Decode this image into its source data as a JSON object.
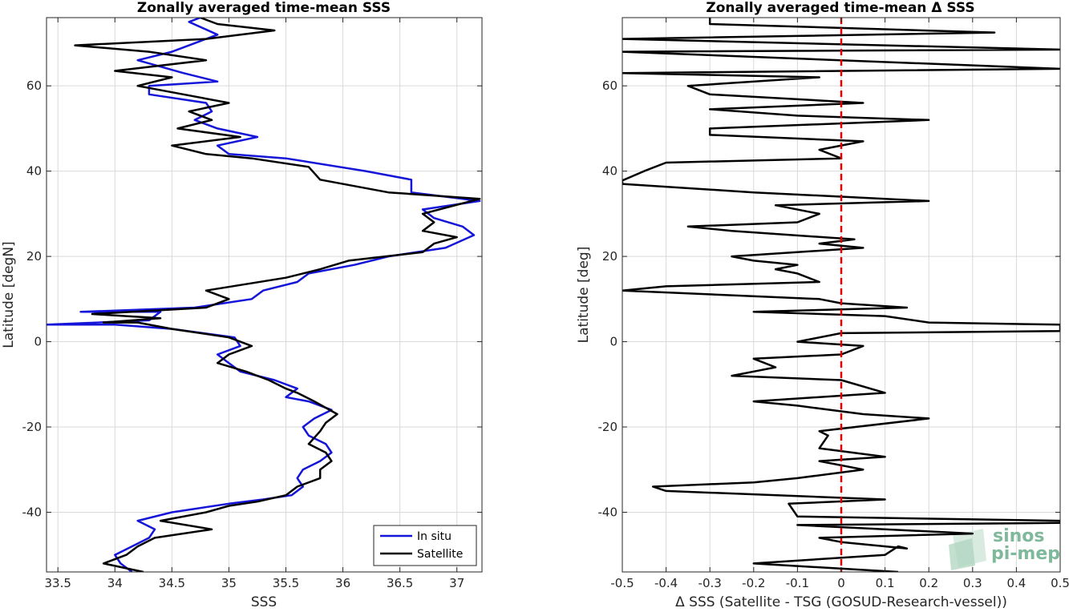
{
  "chart_data": [
    {
      "type": "line",
      "title": "Zonally averaged time-mean SSS",
      "xlabel": "SSS",
      "ylabel": "Latitude [degN]",
      "xlim": [
        33.4,
        37.22
      ],
      "ylim": [
        -54,
        76
      ],
      "xticks": [
        "33.5",
        "34",
        "34.5",
        "35",
        "35.5",
        "36",
        "36.5",
        "37"
      ],
      "xtick_values": [
        33.5,
        34,
        34.5,
        35,
        35.5,
        36,
        36.5,
        37
      ],
      "yticks": [
        "-40",
        "-20",
        "0",
        "20",
        "40",
        "60"
      ],
      "ytick_values": [
        -40,
        -20,
        0,
        20,
        40,
        60
      ],
      "grid": true,
      "legend": "bottom-right",
      "series": [
        {
          "name": "In situ",
          "color": "#1515d9",
          "points": [
            [
              34.15,
              -54
            ],
            [
              34.05,
              -52
            ],
            [
              34.0,
              -50
            ],
            [
              34.15,
              -48
            ],
            [
              34.3,
              -46
            ],
            [
              34.35,
              -44
            ],
            [
              34.2,
              -42
            ],
            [
              34.5,
              -40
            ],
            [
              35.0,
              -38
            ],
            [
              35.3,
              -37
            ],
            [
              35.55,
              -36
            ],
            [
              35.65,
              -34
            ],
            [
              35.6,
              -32
            ],
            [
              35.65,
              -30
            ],
            [
              35.8,
              -28
            ],
            [
              35.9,
              -26
            ],
            [
              35.85,
              -24
            ],
            [
              35.7,
              -22
            ],
            [
              35.65,
              -20
            ],
            [
              35.75,
              -18
            ],
            [
              35.9,
              -16
            ],
            [
              35.7,
              -14
            ],
            [
              35.5,
              -13
            ],
            [
              35.6,
              -11
            ],
            [
              35.4,
              -9
            ],
            [
              35.1,
              -7
            ],
            [
              35.0,
              -5
            ],
            [
              34.9,
              -3
            ],
            [
              35.1,
              -1
            ],
            [
              35.05,
              1
            ],
            [
              34.5,
              3
            ],
            [
              34.0,
              4
            ],
            [
              33.4,
              4
            ],
            [
              34.3,
              5
            ],
            [
              34.4,
              7
            ],
            [
              33.7,
              7
            ],
            [
              34.7,
              8
            ],
            [
              35.2,
              10
            ],
            [
              35.3,
              12
            ],
            [
              35.6,
              14
            ],
            [
              35.7,
              16
            ],
            [
              36.1,
              18
            ],
            [
              36.4,
              20
            ],
            [
              36.9,
              22
            ],
            [
              37.15,
              25
            ],
            [
              37.05,
              27
            ],
            [
              36.8,
              29
            ],
            [
              36.7,
              31
            ],
            [
              37.2,
              33
            ],
            [
              36.6,
              35
            ],
            [
              36.6,
              38
            ],
            [
              36.2,
              40
            ],
            [
              35.5,
              43
            ],
            [
              35.0,
              44
            ],
            [
              34.9,
              46
            ],
            [
              35.25,
              48
            ],
            [
              34.9,
              50
            ],
            [
              34.7,
              52
            ],
            [
              34.85,
              54
            ],
            [
              34.8,
              56
            ],
            [
              34.3,
              58
            ],
            [
              34.3,
              60
            ],
            [
              34.9,
              61
            ],
            [
              34.6,
              63
            ],
            [
              34.2,
              66
            ],
            [
              34.5,
              68
            ],
            [
              34.7,
              70
            ],
            [
              34.9,
              72
            ],
            [
              34.65,
              75
            ],
            [
              34.75,
              76
            ]
          ]
        },
        {
          "name": "Satellite",
          "color": "#000000",
          "points": [
            [
              34.25,
              -54
            ],
            [
              33.9,
              -52
            ],
            [
              34.1,
              -50
            ],
            [
              34.2,
              -48
            ],
            [
              34.35,
              -46
            ],
            [
              34.85,
              -44
            ],
            [
              34.4,
              -42
            ],
            [
              34.8,
              -40
            ],
            [
              35.0,
              -38.5
            ],
            [
              35.25,
              -37.5
            ],
            [
              35.5,
              -36
            ],
            [
              35.6,
              -34
            ],
            [
              35.8,
              -32
            ],
            [
              35.8,
              -30
            ],
            [
              35.9,
              -28
            ],
            [
              35.85,
              -26
            ],
            [
              35.7,
              -24
            ],
            [
              35.8,
              -21
            ],
            [
              35.85,
              -19
            ],
            [
              35.95,
              -17
            ],
            [
              35.75,
              -14
            ],
            [
              35.6,
              -12
            ],
            [
              35.5,
              -11
            ],
            [
              35.35,
              -9
            ],
            [
              35.15,
              -7
            ],
            [
              34.9,
              -5
            ],
            [
              35.0,
              -3
            ],
            [
              35.2,
              -1
            ],
            [
              35.0,
              1
            ],
            [
              34.5,
              3
            ],
            [
              34.2,
              4.5
            ],
            [
              33.9,
              4.5
            ],
            [
              34.4,
              5.5
            ],
            [
              33.8,
              6.5
            ],
            [
              34.8,
              8
            ],
            [
              35.0,
              10
            ],
            [
              34.8,
              12
            ],
            [
              35.5,
              15
            ],
            [
              35.8,
              17
            ],
            [
              36.05,
              19
            ],
            [
              36.7,
              21
            ],
            [
              36.8,
              23
            ],
            [
              37.0,
              24.5
            ],
            [
              36.7,
              26
            ],
            [
              36.8,
              28
            ],
            [
              36.7,
              30
            ],
            [
              37.2,
              33.5
            ],
            [
              36.4,
              35
            ],
            [
              35.8,
              38
            ],
            [
              35.7,
              41
            ],
            [
              35.2,
              43
            ],
            [
              34.8,
              44
            ],
            [
              34.5,
              46
            ],
            [
              35.1,
              48
            ],
            [
              34.55,
              50
            ],
            [
              34.85,
              52
            ],
            [
              34.65,
              54
            ],
            [
              35.0,
              56
            ],
            [
              34.6,
              58
            ],
            [
              34.2,
              60
            ],
            [
              34.5,
              62
            ],
            [
              34.0,
              63.5
            ],
            [
              34.8,
              66
            ],
            [
              34.3,
              68
            ],
            [
              33.65,
              69.5
            ],
            [
              34.8,
              71
            ],
            [
              35.4,
              73
            ],
            [
              34.9,
              74.5
            ],
            [
              34.75,
              76
            ]
          ]
        }
      ]
    },
    {
      "type": "line",
      "title": "Zonally averaged time-mean Δ SSS",
      "xlabel": "Δ SSS (Satellite - TSG (GOSUD-Research-vessel))",
      "ylabel": "Latitude [deg]",
      "xlim": [
        -0.5,
        0.5
      ],
      "ylim": [
        -54,
        76
      ],
      "xticks": [
        "-0.5",
        "-0.4",
        "-0.3",
        "-0.2",
        "-0.1",
        "0",
        "0.1",
        "0.2",
        "0.3",
        "0.4",
        "0.5"
      ],
      "xtick_values": [
        -0.5,
        -0.4,
        -0.3,
        -0.2,
        -0.1,
        0,
        0.1,
        0.2,
        0.3,
        0.4,
        0.5
      ],
      "yticks": [
        "-40",
        "-20",
        "0",
        "20",
        "40",
        "60"
      ],
      "ytick_values": [
        -40,
        -20,
        0,
        20,
        40,
        60
      ],
      "grid": true,
      "reference_line": {
        "x": 0,
        "color": "#e00000",
        "style": "dashed"
      },
      "series": [
        {
          "color": "#000000",
          "points": [
            [
              0.13,
              -54
            ],
            [
              -0.2,
              -52
            ],
            [
              0.1,
              -50
            ],
            [
              0.13,
              -48
            ],
            [
              0.15,
              -48.5
            ],
            [
              0,
              -47
            ],
            [
              -0.05,
              -46
            ],
            [
              0.3,
              -45
            ],
            [
              -0.1,
              -43
            ],
            [
              0.5,
              -42.5
            ],
            [
              0.5,
              -42
            ],
            [
              -0.1,
              -41
            ],
            [
              -0.12,
              -38
            ],
            [
              0.1,
              -37
            ],
            [
              -0.4,
              -35
            ],
            [
              -0.43,
              -34
            ],
            [
              -0.2,
              -33
            ],
            [
              -0.1,
              -32
            ],
            [
              0.05,
              -30
            ],
            [
              -0.05,
              -28
            ],
            [
              0.1,
              -27
            ],
            [
              -0.05,
              -25
            ],
            [
              -0.03,
              -22
            ],
            [
              -0.05,
              -21
            ],
            [
              0.2,
              -18
            ],
            [
              0.05,
              -17
            ],
            [
              -0.1,
              -15
            ],
            [
              -0.2,
              -14
            ],
            [
              0.1,
              -12
            ],
            [
              0,
              -9
            ],
            [
              -0.25,
              -8
            ],
            [
              -0.2,
              -7
            ],
            [
              -0.15,
              -6
            ],
            [
              -0.2,
              -4
            ],
            [
              0,
              -3
            ],
            [
              0.05,
              -1
            ],
            [
              -0.1,
              0
            ],
            [
              0,
              2
            ],
            [
              0.5,
              2.5
            ],
            [
              0.5,
              4
            ],
            [
              0.2,
              4.5
            ],
            [
              0.1,
              6
            ],
            [
              -0.2,
              7
            ],
            [
              0.15,
              8
            ],
            [
              0,
              9
            ],
            [
              -0.05,
              10
            ],
            [
              -0.5,
              12
            ],
            [
              -0.4,
              13
            ],
            [
              -0.05,
              14
            ],
            [
              -0.1,
              16
            ],
            [
              -0.15,
              17
            ],
            [
              -0.1,
              18
            ],
            [
              -0.2,
              19
            ],
            [
              -0.25,
              20
            ],
            [
              0.05,
              22
            ],
            [
              -0.05,
              23
            ],
            [
              0.03,
              24
            ],
            [
              -0.25,
              26
            ],
            [
              -0.35,
              27
            ],
            [
              -0.1,
              28
            ],
            [
              -0.05,
              30
            ],
            [
              -0.15,
              32
            ],
            [
              0.2,
              33
            ],
            [
              -0.2,
              35
            ],
            [
              -0.5,
              37
            ],
            [
              -0.5,
              37.8
            ],
            [
              -0.45,
              40
            ],
            [
              -0.4,
              42
            ],
            [
              0,
              43
            ],
            [
              -0.05,
              45
            ],
            [
              0.05,
              47
            ],
            [
              -0.3,
              48.5
            ],
            [
              -0.3,
              50
            ],
            [
              0.2,
              52
            ],
            [
              -0.1,
              53
            ],
            [
              -0.3,
              54.5
            ],
            [
              0.05,
              56
            ],
            [
              -0.3,
              58
            ],
            [
              -0.35,
              60
            ],
            [
              -0.05,
              62
            ],
            [
              -0.5,
              63
            ],
            [
              0.5,
              64
            ],
            [
              -0.5,
              68
            ],
            [
              0.5,
              68.5
            ],
            [
              -0.5,
              71
            ],
            [
              0.35,
              72.5
            ],
            [
              -0.3,
              74.5
            ],
            [
              -0.3,
              76
            ]
          ]
        }
      ]
    }
  ],
  "watermark": {
    "line1": "sinos",
    "line2": "pi-mep"
  }
}
